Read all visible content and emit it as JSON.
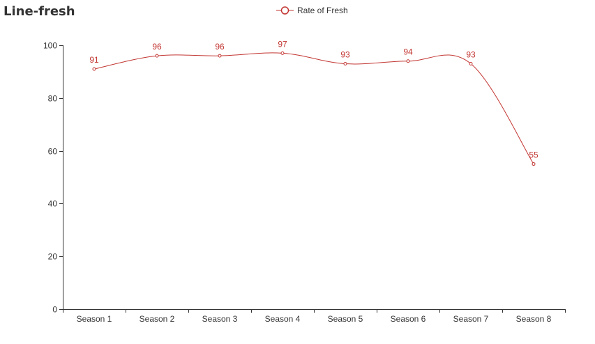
{
  "chart_data": {
    "type": "line",
    "title": "Line-fresh",
    "categories": [
      "Season 1",
      "Season 2",
      "Season 3",
      "Season 4",
      "Season 5",
      "Season 6",
      "Season 7",
      "Season 8"
    ],
    "series": [
      {
        "name": "Rate of Fresh",
        "values": [
          91,
          96,
          96,
          97,
          93,
          94,
          93,
          55
        ]
      }
    ],
    "ylim": [
      0,
      100
    ],
    "yticks": [
      0,
      20,
      40,
      60,
      80,
      100
    ],
    "smooth": true,
    "grid": false,
    "legend_position": "top-center",
    "show_data_labels": true,
    "colors": {
      "series": "#c23531",
      "axis": "#333333"
    }
  }
}
